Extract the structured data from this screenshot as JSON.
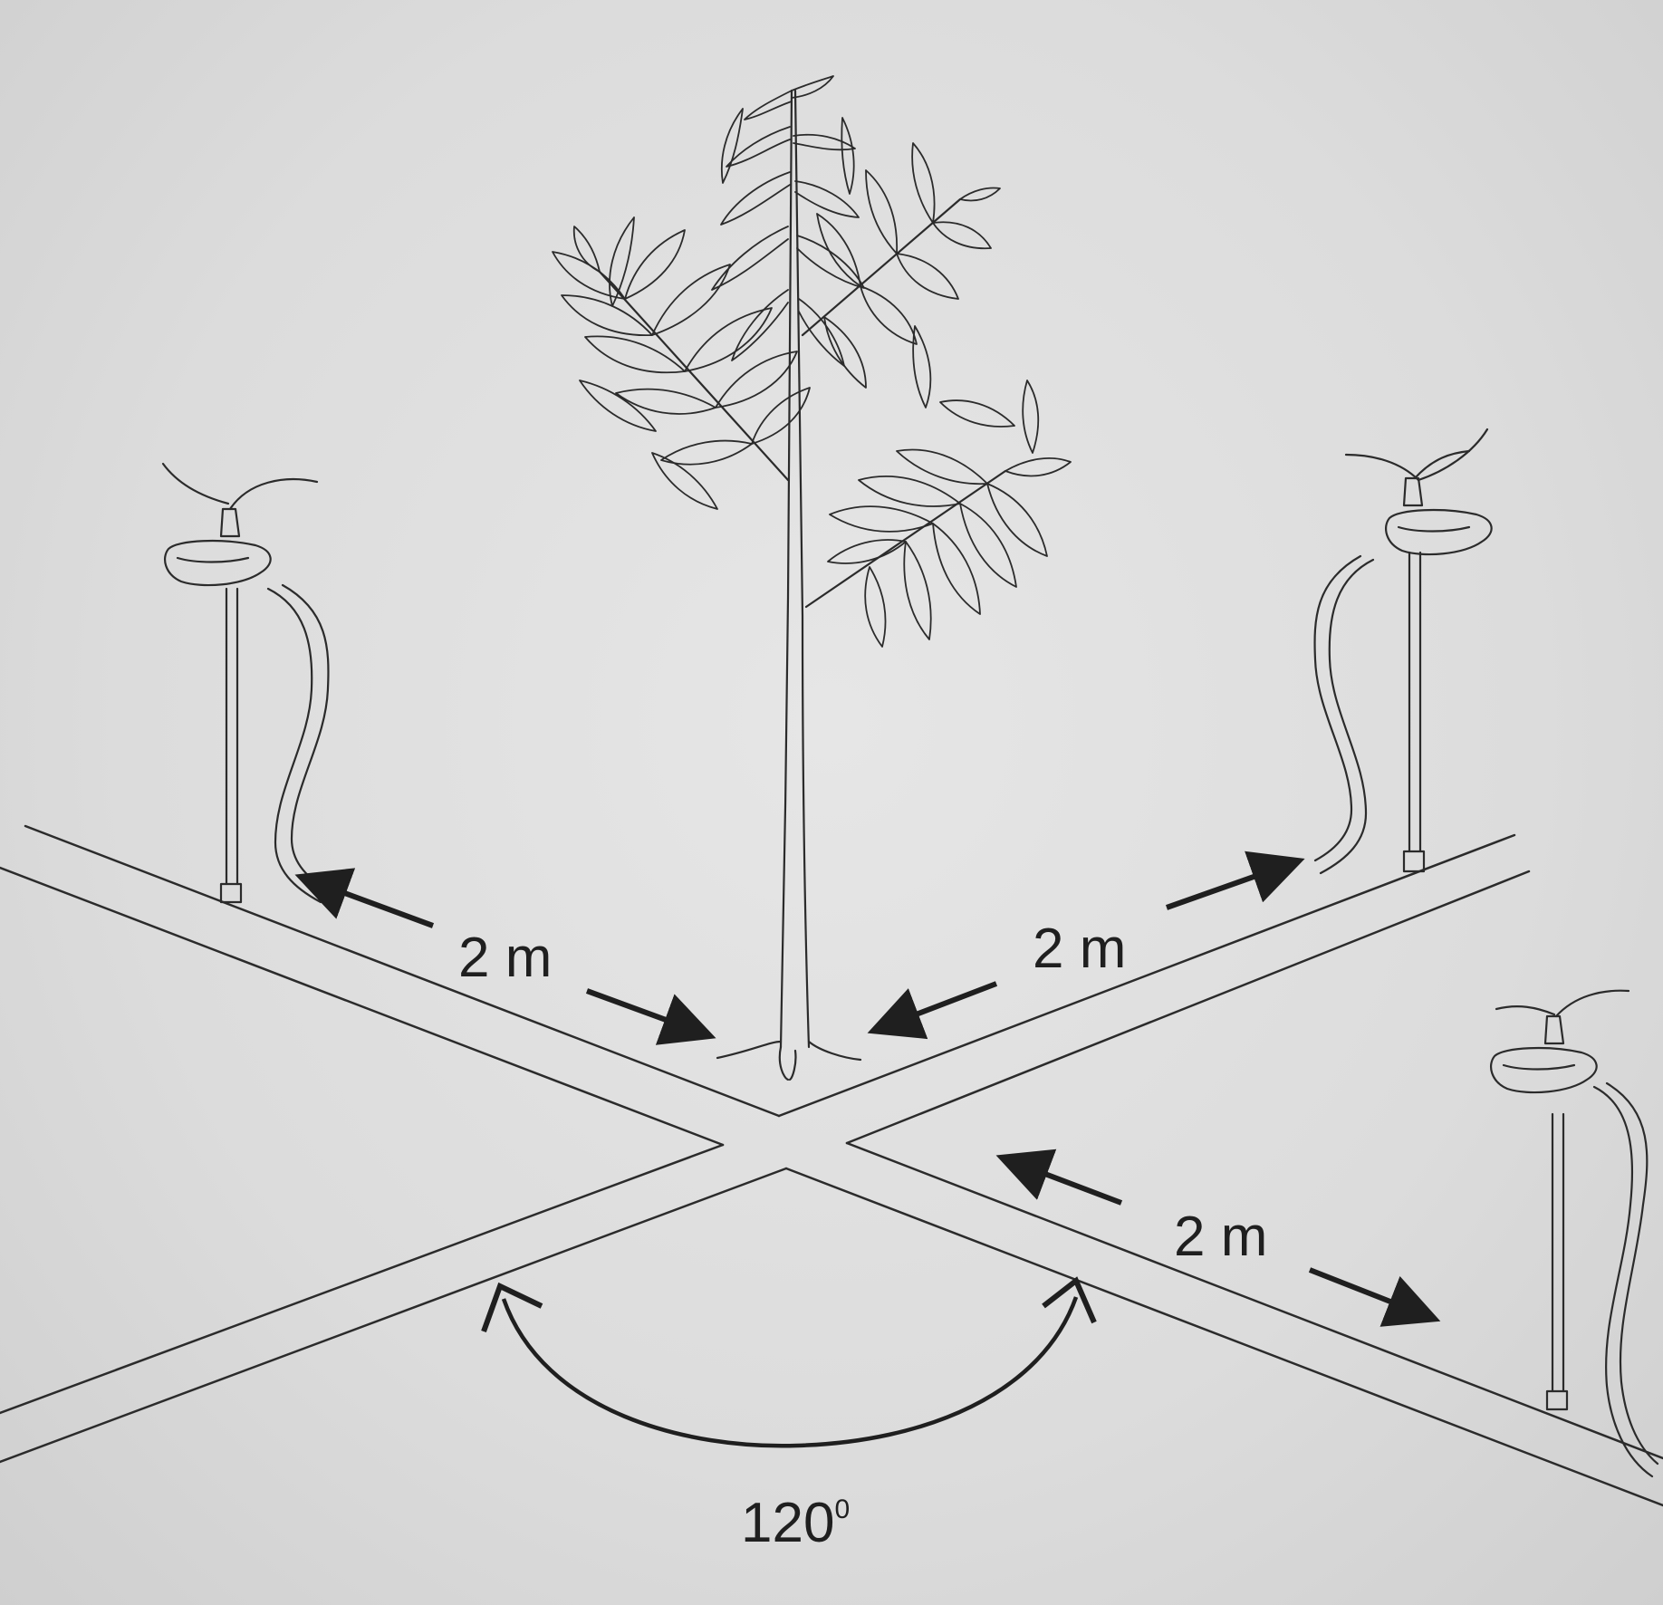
{
  "labels": {
    "distance_top_left": "2 m",
    "distance_top_right": "2 m",
    "distance_bottom_right": "2 m",
    "angle_value": "120",
    "angle_unit": "0"
  },
  "colors": {
    "paper": "#dedede",
    "ink": "#2b2b2b"
  }
}
